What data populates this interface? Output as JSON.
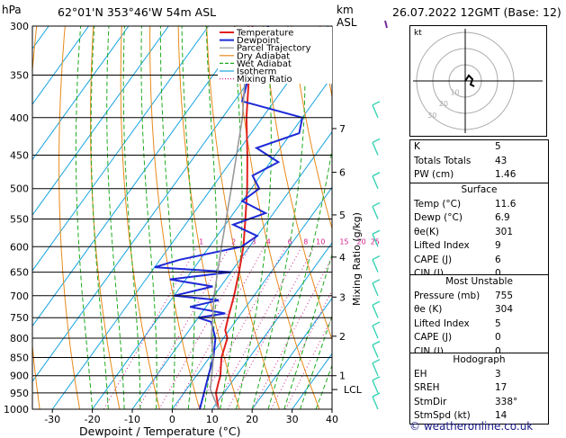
{
  "header": {
    "pressure_unit": "hPa",
    "location": "62°01'N  353°46'W  54m  ASL",
    "height_unit_km": "km",
    "height_unit_asl": "ASL",
    "datetime": "26.07.2022  12GMT  (Base: 12)"
  },
  "chart_data": {
    "type": "skew-t",
    "xlabel": "Dewpoint / Temperature (°C)",
    "ylabel_right": "Mixing Ratio (g/kg)",
    "ylabel_left": "hPa",
    "xlim": [
      -35,
      40
    ],
    "ylim": [
      1000,
      300
    ],
    "y_scale": "log",
    "x_ticks": [
      -30,
      -20,
      -10,
      0,
      10,
      20,
      30,
      40
    ],
    "pressure_ticks": [
      300,
      350,
      400,
      450,
      500,
      550,
      600,
      650,
      700,
      750,
      800,
      850,
      900,
      950,
      1000
    ],
    "km_ticks": [
      {
        "km": "1",
        "p": 900
      },
      {
        "km": "2",
        "p": 795
      },
      {
        "km": "3",
        "p": 703
      },
      {
        "km": "4",
        "p": 620
      },
      {
        "km": "5",
        "p": 543
      },
      {
        "km": "6",
        "p": 475
      },
      {
        "km": "7",
        "p": 414
      }
    ],
    "lcl": {
      "label": "LCL",
      "p": 940
    },
    "mixing_ratio_labels": [
      "1",
      "2",
      "3",
      "4",
      "6",
      "8",
      "10",
      "15",
      "20",
      "25"
    ],
    "legend": [
      "Temperature",
      "Dewpoint",
      "Parcel Trajectory",
      "Dry Adiabat",
      "Wet Adiabat",
      "Isotherm",
      "Mixing Ratio"
    ],
    "legend_placement": "top-right",
    "series": [
      {
        "name": "Temperature",
        "points": [
          [
            1000,
            11.6
          ],
          [
            950,
            8
          ],
          [
            925,
            7
          ],
          [
            900,
            6
          ],
          [
            850,
            3
          ],
          [
            800,
            1
          ],
          [
            780,
            -1
          ],
          [
            750,
            -2.5
          ],
          [
            700,
            -5
          ],
          [
            650,
            -8
          ],
          [
            600,
            -11.5
          ],
          [
            550,
            -16
          ],
          [
            500,
            -21
          ],
          [
            450,
            -27
          ],
          [
            400,
            -34
          ],
          [
            350,
            -41
          ],
          [
            300,
            -49
          ]
        ]
      },
      {
        "name": "Dewpoint",
        "points": [
          [
            1000,
            6.9
          ],
          [
            950,
            5
          ],
          [
            900,
            3
          ],
          [
            850,
            1
          ],
          [
            800,
            -2
          ],
          [
            760,
            -6
          ],
          [
            750,
            -10
          ],
          [
            740,
            -4
          ],
          [
            725,
            -14
          ],
          [
            710,
            -8
          ],
          [
            700,
            -20
          ],
          [
            680,
            -12
          ],
          [
            665,
            -24
          ],
          [
            650,
            -10
          ],
          [
            640,
            -30
          ],
          [
            625,
            -25
          ],
          [
            600,
            -12
          ],
          [
            580,
            -10
          ],
          [
            560,
            -18
          ],
          [
            540,
            -12
          ],
          [
            520,
            -20
          ],
          [
            500,
            -18
          ],
          [
            480,
            -22
          ],
          [
            460,
            -18
          ],
          [
            440,
            -26
          ],
          [
            420,
            -18
          ],
          [
            400,
            -20
          ],
          [
            380,
            -38
          ],
          [
            350,
            -41
          ],
          [
            300,
            -45
          ]
        ]
      },
      {
        "name": "Parcel Trajectory",
        "points": [
          [
            1000,
            11.6
          ],
          [
            940,
            6
          ],
          [
            850,
            1
          ],
          [
            800,
            -3
          ],
          [
            700,
            -10
          ],
          [
            600,
            -17
          ],
          [
            500,
            -25
          ],
          [
            400,
            -35
          ],
          [
            350,
            -42
          ],
          [
            300,
            -50
          ]
        ]
      }
    ]
  },
  "hodograph": {
    "unit_label": "kt",
    "ring_labels": [
      "10",
      "20",
      "30"
    ]
  },
  "indices": [
    {
      "label": "K",
      "value": "5"
    },
    {
      "label": "Totals Totals",
      "value": "43"
    },
    {
      "label": "PW (cm)",
      "value": "1.46"
    }
  ],
  "surface": {
    "title": "Surface",
    "rows": [
      {
        "label": "Temp (°C)",
        "value": "11.6"
      },
      {
        "label": "Dewp (°C)",
        "value": "6.9"
      },
      {
        "label": "θe(K)",
        "value": "301"
      },
      {
        "label": "Lifted Index",
        "value": "9"
      },
      {
        "label": "CAPE (J)",
        "value": "6"
      },
      {
        "label": "CIN (J)",
        "value": "0"
      }
    ]
  },
  "most_unstable": {
    "title": "Most Unstable",
    "rows": [
      {
        "label": "Pressure (mb)",
        "value": "755"
      },
      {
        "label": "θe (K)",
        "value": "304"
      },
      {
        "label": "Lifted Index",
        "value": "5"
      },
      {
        "label": "CAPE (J)",
        "value": "0"
      },
      {
        "label": "CIN (J)",
        "value": "0"
      }
    ]
  },
  "hodograph_table": {
    "title": "Hodograph",
    "rows": [
      {
        "label": "EH",
        "value": "3"
      },
      {
        "label": "SREH",
        "value": "17"
      },
      {
        "label": "StmDir",
        "value": "338°"
      },
      {
        "label": "StmSpd (kt)",
        "value": "14"
      }
    ]
  },
  "copyright": "© weatheronline.co.uk",
  "colors": {
    "temperature": "#e0221e",
    "dewpoint": "#1e2ad6",
    "parcel": "#999999",
    "dry_adiabat": "#e88a1a",
    "wet_adiabat": "#1eaa1e",
    "isotherm": "#18a4e0",
    "mixing_ratio": "#d0208a",
    "wind": "#2ad0b0",
    "hodograph": "#000000"
  }
}
